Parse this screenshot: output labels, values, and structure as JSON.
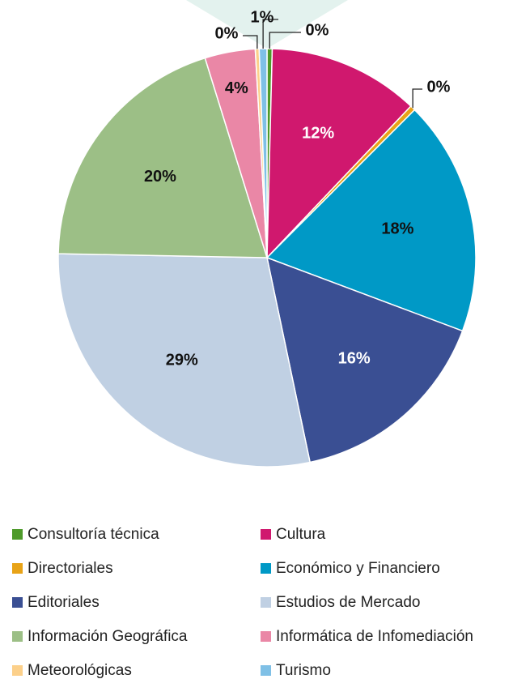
{
  "chart_data": {
    "type": "pie",
    "categories": [
      "Consultoría técnica",
      "Cultura",
      "Directoriales",
      "Económico y Financiero",
      "Editoriales",
      "Estudios de Mercado",
      "Información Geográfica",
      "Informática de Infomediación",
      "Meteorológicas",
      "Turismo"
    ],
    "values": [
      0.4,
      11.7,
      0.4,
      18.2,
      16.0,
      28.6,
      19.9,
      3.9,
      0.3,
      0.6
    ],
    "value_labels": [
      "0%",
      "12%",
      "0%",
      "18%",
      "16%",
      "29%",
      "20%",
      "4%",
      "0%",
      "1%"
    ],
    "colors": [
      "#4e9a2a",
      "#d0186e",
      "#e8a317",
      "#0099c6",
      "#3a4f93",
      "#c0d0e3",
      "#9cbf86",
      "#ea87a6",
      "#fcd08a",
      "#7fc0e6"
    ]
  }
}
